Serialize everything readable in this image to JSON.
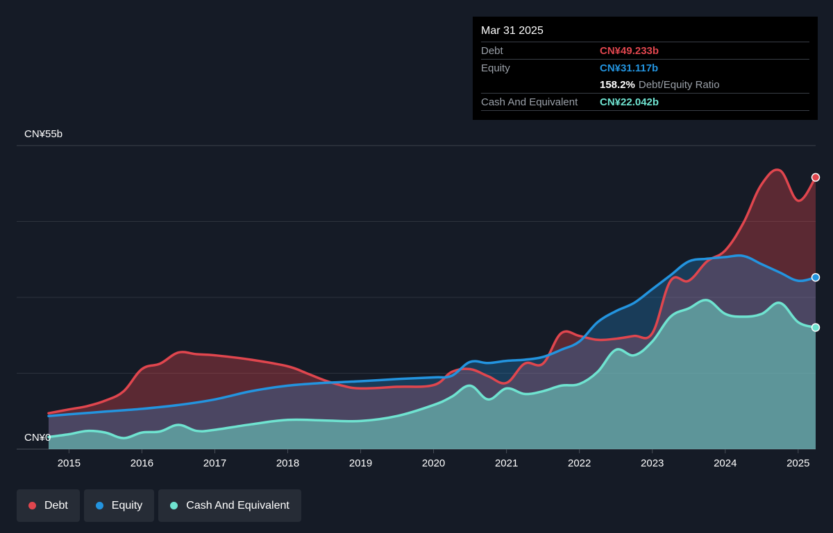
{
  "tooltip": {
    "date": "Mar 31 2025",
    "debt_label": "Debt",
    "debt_value": "CN¥49.233b",
    "equity_label": "Equity",
    "equity_value": "CN¥31.117b",
    "ratio_value": "158.2%",
    "ratio_label": "Debt/Equity Ratio",
    "cash_label": "Cash And Equivalent",
    "cash_value": "CN¥22.042b"
  },
  "legend": {
    "debt": "Debt",
    "equity": "Equity",
    "cash": "Cash And Equivalent"
  },
  "colors": {
    "debt": "#e0464e",
    "equity": "#2394df",
    "cash": "#6fe3d0",
    "background": "#151b26"
  },
  "chart_data": {
    "type": "area",
    "y_top_label": "CN¥55b",
    "y_bottom_label": "CN¥0",
    "ylim": [
      0,
      55
    ],
    "xlim": [
      2014.72,
      2025.24
    ],
    "x_ticks": [
      "2015",
      "2016",
      "2017",
      "2018",
      "2019",
      "2020",
      "2021",
      "2022",
      "2023",
      "2024",
      "2025"
    ],
    "grid": true,
    "legend_position": "bottom-left",
    "series": [
      {
        "name": "Debt",
        "x": [
          2014.72,
          2015.0,
          2015.25,
          2015.5,
          2015.75,
          2016.0,
          2016.25,
          2016.5,
          2016.75,
          2017.0,
          2017.5,
          2018.0,
          2018.25,
          2018.5,
          2018.75,
          2019.0,
          2019.5,
          2020.0,
          2020.25,
          2020.5,
          2020.75,
          2021.0,
          2021.25,
          2021.5,
          2021.75,
          2022.0,
          2022.25,
          2022.5,
          2022.75,
          2023.0,
          2023.25,
          2023.5,
          2023.75,
          2024.0,
          2024.25,
          2024.5,
          2024.75,
          2025.0,
          2025.24
        ],
        "values": [
          6.5,
          7.2,
          7.8,
          8.8,
          10.5,
          14.5,
          15.5,
          17.5,
          17.2,
          17.0,
          16.2,
          15.0,
          13.8,
          12.5,
          11.5,
          11.0,
          11.3,
          11.6,
          14.0,
          14.5,
          13.2,
          12.0,
          15.5,
          15.5,
          21.0,
          20.5,
          19.8,
          20.0,
          20.5,
          21.0,
          30.5,
          30.5,
          34.0,
          36.0,
          41.0,
          48.0,
          50.5,
          45.0,
          49.233
        ]
      },
      {
        "name": "Equity",
        "x": [
          2014.72,
          2015.0,
          2015.5,
          2016.0,
          2016.5,
          2017.0,
          2017.5,
          2018.0,
          2018.5,
          2019.0,
          2019.5,
          2020.0,
          2020.25,
          2020.5,
          2020.75,
          2021.0,
          2021.25,
          2021.5,
          2021.75,
          2022.0,
          2022.25,
          2022.5,
          2022.75,
          2023.0,
          2023.25,
          2023.5,
          2023.75,
          2024.0,
          2024.25,
          2024.5,
          2024.75,
          2025.0,
          2025.24
        ],
        "values": [
          6.0,
          6.3,
          6.8,
          7.3,
          8.0,
          9.0,
          10.5,
          11.5,
          12.0,
          12.3,
          12.7,
          13.0,
          13.3,
          15.8,
          15.6,
          16.0,
          16.2,
          16.7,
          18.0,
          19.5,
          23.0,
          25.0,
          26.5,
          29.0,
          31.5,
          34.0,
          34.5,
          34.8,
          35.0,
          33.5,
          32.0,
          30.5,
          31.117
        ]
      },
      {
        "name": "Cash And Equivalent",
        "x": [
          2014.72,
          2015.0,
          2015.25,
          2015.5,
          2015.75,
          2016.0,
          2016.25,
          2016.5,
          2016.75,
          2017.0,
          2017.5,
          2018.0,
          2018.5,
          2019.0,
          2019.5,
          2020.0,
          2020.25,
          2020.5,
          2020.75,
          2021.0,
          2021.25,
          2021.5,
          2021.75,
          2022.0,
          2022.25,
          2022.5,
          2022.75,
          2023.0,
          2023.25,
          2023.5,
          2023.75,
          2024.0,
          2024.25,
          2024.5,
          2024.75,
          2025.0,
          2025.24
        ],
        "values": [
          2.2,
          2.7,
          3.3,
          3.0,
          2.0,
          3.0,
          3.2,
          4.4,
          3.3,
          3.5,
          4.5,
          5.3,
          5.2,
          5.1,
          6.0,
          8.0,
          9.5,
          11.5,
          9.0,
          11.0,
          10.0,
          10.5,
          11.5,
          11.8,
          14.0,
          18.0,
          17.0,
          19.5,
          24.0,
          25.5,
          27.0,
          24.5,
          24.0,
          24.5,
          26.5,
          23.0,
          22.042
        ]
      }
    ]
  }
}
